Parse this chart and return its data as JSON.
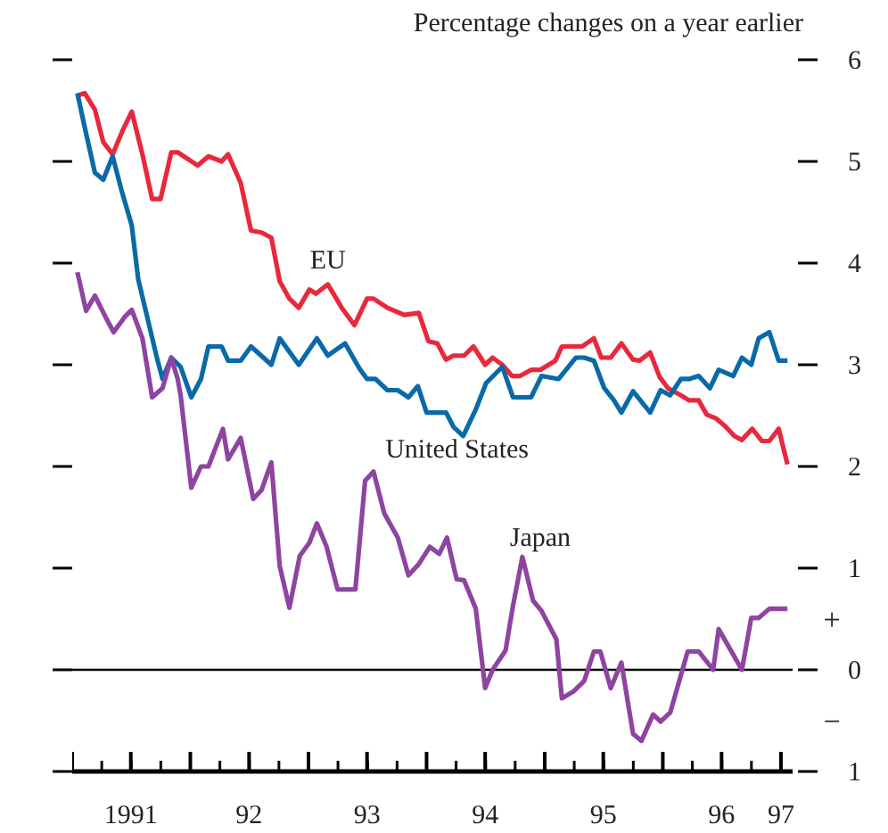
{
  "chart_data": {
    "type": "line",
    "ylabel": "Percentage changes on a year earlier",
    "xlim": [
      "1991-01-01",
      "1997-02-06"
    ],
    "ylim": [
      -1,
      6
    ],
    "xticks": [
      {
        "value": "1991-01-01",
        "label": null
      },
      {
        "value": "1991-07-01",
        "label": "1991"
      },
      {
        "value": "1992-01-01",
        "label": null
      },
      {
        "value": "1992-07-01",
        "label": "92"
      },
      {
        "value": "1993-01-01",
        "label": null
      },
      {
        "value": "1993-07-01",
        "label": "93"
      },
      {
        "value": "1994-01-01",
        "label": null
      },
      {
        "value": "1994-07-01",
        "label": "94"
      },
      {
        "value": "1995-01-01",
        "label": null
      },
      {
        "value": "1995-07-01",
        "label": "95"
      },
      {
        "value": "1996-01-01",
        "label": null
      },
      {
        "value": "1996-07-01",
        "label": "96"
      },
      {
        "value": "1997-01-01",
        "label": "97"
      }
    ],
    "yticks": [
      {
        "value": -1,
        "label": "1"
      },
      0,
      1,
      2,
      3,
      4,
      5,
      6
    ],
    "line_style": "solid",
    "ref_lines": [
      {
        "axis": "y",
        "value": 0,
        "color": "#000000"
      }
    ],
    "annotations": [
      "+",
      "−"
    ],
    "series": [
      {
        "name": "EU",
        "color": "#e8283c",
        "x": [
          "1991-01-17",
          "1991-02-09",
          "1991-03-12",
          "1991-04-07",
          "1991-05-06",
          "1991-06-08",
          "1991-07-04",
          "1991-08-06",
          "1991-09-05",
          "1991-10-01",
          "1991-11-03",
          "1991-11-23",
          "1992-01-24",
          "1992-02-26",
          "1992-04-07",
          "1992-04-27",
          "1992-06-05",
          "1992-07-07",
          "1992-08-09",
          "1992-09-08",
          "1992-10-04",
          "1992-11-03",
          "1992-12-02",
          "1993-01-04",
          "1993-01-24",
          "1993-03-02",
          "1993-04-14",
          "1993-05-23",
          "1993-07-01",
          "1993-07-21",
          "1993-09-02",
          "1993-10-24",
          "1993-12-08",
          "1994-01-07",
          "1994-02-03",
          "1994-03-02",
          "1994-03-25",
          "1994-04-27",
          "1994-05-26",
          "1994-07-01",
          "1994-07-24",
          "1994-08-23",
          "1994-09-22",
          "1994-10-17",
          "1994-11-20",
          "1994-12-18",
          "1995-02-03",
          "1995-02-23",
          "1995-04-27",
          "1995-06-02",
          "1995-06-25",
          "1995-07-24",
          "1995-08-26",
          "1995-10-01",
          "1995-10-21",
          "1995-11-23",
          "1995-12-22",
          "1996-01-17",
          "1996-02-26",
          "1996-03-22",
          "1996-04-21",
          "1996-05-16",
          "1996-06-15",
          "1996-07-14",
          "1996-08-09",
          "1996-09-02",
          "1996-10-04",
          "1996-11-03",
          "1996-11-26",
          "1996-12-25",
          "1997-01-21"
        ],
        "values": [
          5.65,
          5.67,
          5.51,
          5.19,
          5.07,
          5.32,
          5.49,
          5.07,
          4.63,
          4.63,
          5.09,
          5.09,
          4.96,
          5.05,
          5.0,
          5.07,
          4.79,
          4.32,
          4.3,
          4.25,
          3.82,
          3.65,
          3.56,
          3.74,
          3.7,
          3.79,
          3.56,
          3.39,
          3.65,
          3.65,
          3.56,
          3.49,
          3.51,
          3.23,
          3.21,
          3.05,
          3.09,
          3.09,
          3.18,
          3.0,
          3.07,
          3.0,
          2.89,
          2.89,
          2.95,
          2.95,
          3.04,
          3.18,
          3.18,
          3.26,
          3.07,
          3.07,
          3.21,
          3.05,
          3.04,
          3.12,
          2.88,
          2.77,
          2.7,
          2.65,
          2.65,
          2.51,
          2.47,
          2.39,
          2.3,
          2.26,
          2.37,
          2.25,
          2.25,
          2.37,
          2.02
        ]
      },
      {
        "name": "United States",
        "color": "#0a6aa8",
        "x": [
          "1991-01-17",
          "1991-02-09",
          "1991-03-12",
          "1991-04-07",
          "1991-05-06",
          "1991-06-02",
          "1991-07-04",
          "1991-07-24",
          "1991-08-23",
          "1991-09-18",
          "1991-10-07",
          "1991-11-03",
          "1991-12-02",
          "1992-01-04",
          "1992-02-03",
          "1992-02-26",
          "1992-04-07",
          "1992-04-27",
          "1992-06-05",
          "1992-07-07",
          "1992-09-08",
          "1992-10-04",
          "1992-12-02",
          "1993-01-27",
          "1993-03-02",
          "1993-04-24",
          "1993-06-08",
          "1993-07-01",
          "1993-07-27",
          "1993-09-02",
          "1993-10-04",
          "1993-11-06",
          "1993-12-05",
          "1994-01-01",
          "1994-03-02",
          "1994-03-25",
          "1994-04-24",
          "1994-06-02",
          "1994-07-04",
          "1994-08-23",
          "1994-09-25",
          "1994-11-20",
          "1994-12-22",
          "1995-02-13",
          "1995-04-07",
          "1995-05-03",
          "1995-06-02",
          "1995-07-04",
          "1995-08-03",
          "1995-08-26",
          "1995-10-01",
          "1995-11-23",
          "1995-12-25",
          "1996-01-24",
          "1996-02-26",
          "1996-03-22",
          "1996-04-21",
          "1996-05-26",
          "1996-06-22",
          "1996-08-06",
          "1996-09-02",
          "1996-10-01",
          "1996-10-24",
          "1996-11-26",
          "1996-12-25",
          "1997-01-21"
        ],
        "values": [
          5.67,
          5.33,
          4.89,
          4.82,
          5.05,
          4.72,
          4.37,
          3.84,
          3.44,
          3.09,
          2.86,
          3.07,
          2.98,
          2.68,
          2.86,
          3.18,
          3.18,
          3.04,
          3.04,
          3.18,
          3.0,
          3.26,
          3.0,
          3.26,
          3.09,
          3.21,
          2.96,
          2.86,
          2.86,
          2.75,
          2.75,
          2.68,
          2.79,
          2.53,
          2.53,
          2.39,
          2.3,
          2.56,
          2.82,
          2.98,
          2.68,
          2.68,
          2.89,
          2.86,
          3.07,
          3.07,
          3.04,
          2.77,
          2.65,
          2.53,
          2.74,
          2.53,
          2.75,
          2.7,
          2.86,
          2.86,
          2.89,
          2.77,
          2.95,
          2.89,
          3.07,
          3.0,
          3.26,
          3.32,
          3.04,
          3.04
        ]
      },
      {
        "name": "Japan",
        "color": "#8e44a0",
        "x": [
          "1991-01-17",
          "1991-02-13",
          "1991-03-12",
          "1991-04-14",
          "1991-05-09",
          "1991-06-12",
          "1991-07-04",
          "1991-08-06",
          "1991-09-05",
          "1991-10-07",
          "1991-11-03",
          "1991-11-23",
          "1991-12-02",
          "1992-01-04",
          "1992-02-03",
          "1992-02-26",
          "1992-04-11",
          "1992-04-27",
          "1992-06-05",
          "1992-07-14",
          "1992-08-09",
          "1992-09-08",
          "1992-10-04",
          "1992-11-03",
          "1992-12-05",
          "1993-01-04",
          "1993-01-27",
          "1993-02-26",
          "1993-04-01",
          "1993-05-26",
          "1993-06-25",
          "1993-07-21",
          "1993-08-23",
          "1993-10-04",
          "1993-11-06",
          "1993-12-08",
          "1994-01-11",
          "1994-02-09",
          "1994-03-05",
          "1994-04-04",
          "1994-04-27",
          "1994-06-02",
          "1994-07-01",
          "1994-07-24",
          "1994-09-02",
          "1994-09-25",
          "1994-10-24",
          "1994-11-26",
          "1994-12-22",
          "1995-02-06",
          "1995-02-23",
          "1995-04-01",
          "1995-05-03",
          "1995-06-02",
          "1995-06-22",
          "1995-07-24",
          "1995-08-26",
          "1995-10-01",
          "1995-10-27",
          "1995-12-02",
          "1995-12-25",
          "1996-01-24",
          "1996-03-18",
          "1996-04-21",
          "1996-06-05",
          "1996-06-22",
          "1996-09-02",
          "1996-10-01",
          "1996-10-24",
          "1996-11-26",
          "1997-01-21"
        ],
        "values": [
          3.91,
          3.53,
          3.68,
          3.47,
          3.32,
          3.47,
          3.54,
          3.26,
          2.68,
          2.77,
          3.07,
          2.86,
          2.7,
          1.79,
          2.0,
          2.0,
          2.37,
          2.07,
          2.28,
          1.68,
          1.77,
          2.04,
          1.02,
          0.61,
          1.12,
          1.25,
          1.44,
          1.21,
          0.79,
          0.79,
          1.86,
          1.95,
          1.54,
          1.3,
          0.93,
          1.04,
          1.21,
          1.14,
          1.3,
          0.89,
          0.88,
          0.6,
          -0.18,
          0.0,
          0.19,
          0.63,
          1.11,
          0.68,
          0.58,
          0.3,
          -0.28,
          -0.21,
          -0.11,
          0.18,
          0.18,
          -0.18,
          0.07,
          -0.63,
          -0.7,
          -0.44,
          -0.51,
          -0.42,
          0.18,
          0.18,
          0.0,
          0.4,
          0.0,
          0.51,
          0.51,
          0.6,
          0.6
        ]
      }
    ]
  }
}
